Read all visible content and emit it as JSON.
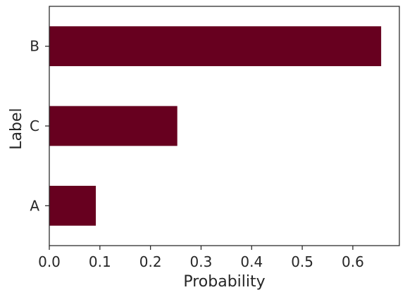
{
  "chart_data": {
    "type": "bar",
    "orientation": "horizontal",
    "categories": [
      "A",
      "C",
      "B"
    ],
    "values": [
      0.092,
      0.253,
      0.656
    ],
    "xlabel": "Probability",
    "ylabel": "Label",
    "xlim": [
      0.0,
      0.692
    ],
    "xticks": [
      "0.0",
      "0.1",
      "0.2",
      "0.3",
      "0.4",
      "0.5",
      "0.6"
    ],
    "grid": false,
    "bar_color": "#67001f",
    "axis_color": "#262626"
  }
}
